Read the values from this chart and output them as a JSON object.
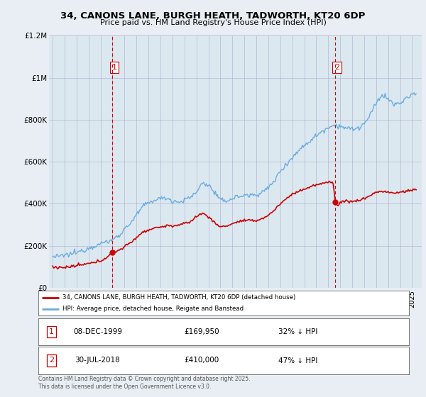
{
  "title_line1": "34, CANONS LANE, BURGH HEATH, TADWORTH, KT20 6DP",
  "title_line2": "Price paid vs. HM Land Registry's House Price Index (HPI)",
  "footer": "Contains HM Land Registry data © Crown copyright and database right 2025.\nThis data is licensed under the Open Government Licence v3.0.",
  "legend_red": "34, CANONS LANE, BURGH HEATH, TADWORTH, KT20 6DP (detached house)",
  "legend_blue": "HPI: Average price, detached house, Reigate and Banstead",
  "sale1_date": "08-DEC-1999",
  "sale1_price": "£169,950",
  "sale1_info": "32% ↓ HPI",
  "sale2_date": "30-JUL-2018",
  "sale2_price": "£410,000",
  "sale2_info": "47% ↓ HPI",
  "sale1_year": 2000.0,
  "sale1_value": 169950,
  "sale2_year": 2018.58,
  "sale2_value": 410000,
  "background_color": "#e8eef4",
  "plot_bg_color": "#dce8f0",
  "red_color": "#cc0000",
  "blue_color": "#6aace0",
  "vline_color": "#cc0000",
  "ylim": [
    0,
    1200000
  ],
  "yticks": [
    0,
    200000,
    400000,
    600000,
    800000,
    1000000,
    1200000
  ],
  "ytick_labels": [
    "£0",
    "£200K",
    "£400K",
    "£600K",
    "£800K",
    "£1M",
    "£1.2M"
  ]
}
